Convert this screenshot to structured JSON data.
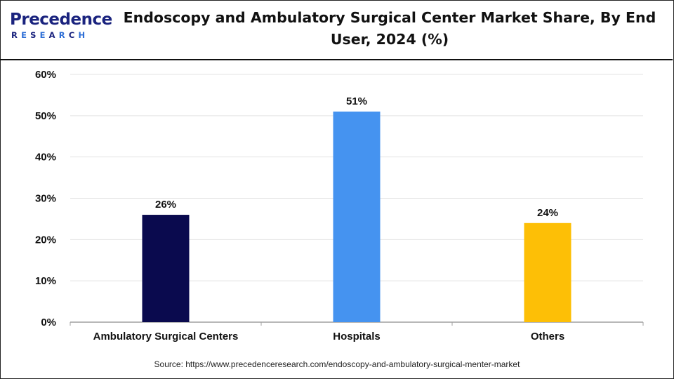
{
  "brand": {
    "name": "Precedence",
    "sub": "RESEARCH",
    "colors": {
      "primary": "#1a237e",
      "accent": "#2f6fd6"
    }
  },
  "chart_data": {
    "type": "bar",
    "title": "Endoscopy and Ambulatory Surgical Center Market Share, By End User, 2024 (%)",
    "categories": [
      "Ambulatory Surgical Centers",
      "Hospitals",
      "Others"
    ],
    "values": [
      26,
      51,
      24
    ],
    "value_labels": [
      "26%",
      "51%",
      "24%"
    ],
    "colors": [
      "#0a0a4e",
      "#4593f0",
      "#fdbf06"
    ],
    "ylim": [
      0,
      60
    ],
    "yticks": [
      0,
      10,
      20,
      30,
      40,
      50,
      60
    ],
    "ytick_labels": [
      "0%",
      "10%",
      "20%",
      "30%",
      "40%",
      "50%",
      "60%"
    ],
    "xlabel": "",
    "ylabel": "",
    "grid": true
  },
  "source": "Source: https://www.precedenceresearch.com/endoscopy-and-ambulatory-surgical-menter-market"
}
